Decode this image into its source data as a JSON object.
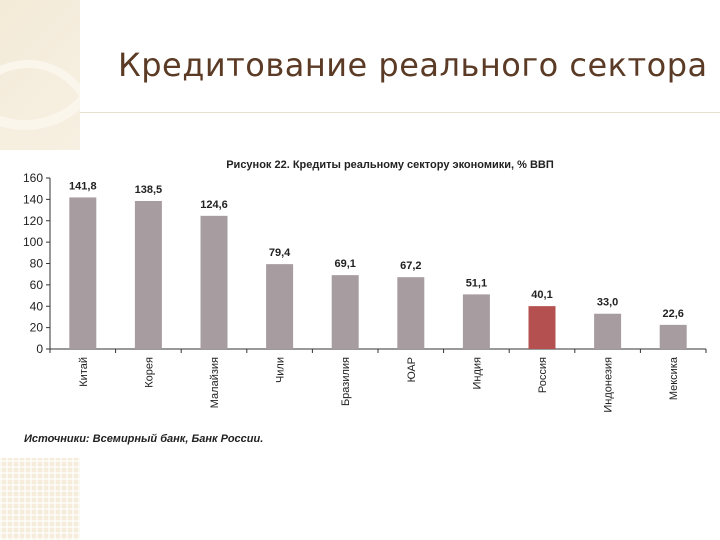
{
  "slide": {
    "title": "Кредитование реального сектора",
    "figure_title": "Рисунок 22. Кредиты реальному сектору экономики, % ВВП",
    "source": "Источники: Всемирный банк, Банк России."
  },
  "chart_data": {
    "type": "bar",
    "title": "Рисунок 22. Кредиты реальному сектору экономики, % ВВП",
    "categories": [
      "Китай",
      "Корея",
      "Малайзия",
      "Чили",
      "Бразилия",
      "ЮАР",
      "Индия",
      "Россия",
      "Индонезия",
      "Мексика"
    ],
    "values": [
      141.8,
      138.5,
      124.6,
      79.4,
      69.1,
      67.2,
      51.1,
      40.1,
      33.0,
      22.6
    ],
    "value_labels": [
      "141,8",
      "138,5",
      "124,6",
      "79,4",
      "69,1",
      "67,2",
      "51,1",
      "40,1",
      "33,0",
      "22,6"
    ],
    "ylim": [
      0,
      160
    ],
    "yticks": [
      0,
      20,
      40,
      60,
      80,
      100,
      120,
      140,
      160
    ],
    "grid": false,
    "colors": {
      "default": "#a79ca0",
      "highlight": "#b4504f"
    },
    "highlight_category": "Россия"
  }
}
